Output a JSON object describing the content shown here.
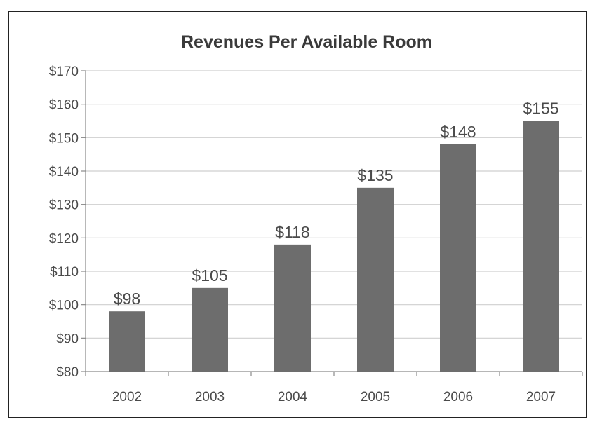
{
  "chart_data": {
    "type": "bar",
    "title": "Revenues Per Available Room",
    "xlabel": "",
    "ylabel": "",
    "categories": [
      "2002",
      "2003",
      "2004",
      "2005",
      "2006",
      "2007"
    ],
    "values": [
      98,
      105,
      118,
      135,
      148,
      155
    ],
    "data_labels": [
      "$98",
      "$105",
      "$118",
      "$135",
      "$148",
      "$155"
    ],
    "ylim": [
      80,
      170
    ],
    "yticks": [
      80,
      90,
      100,
      110,
      120,
      130,
      140,
      150,
      160,
      170
    ],
    "ytick_labels": [
      "$80",
      "$90",
      "$100",
      "$110",
      "$120",
      "$130",
      "$140",
      "$150",
      "$160",
      "$170"
    ],
    "grid": true,
    "legend": "none",
    "bar_color": "#6d6d6d",
    "grid_color": "#cfcfcf"
  }
}
